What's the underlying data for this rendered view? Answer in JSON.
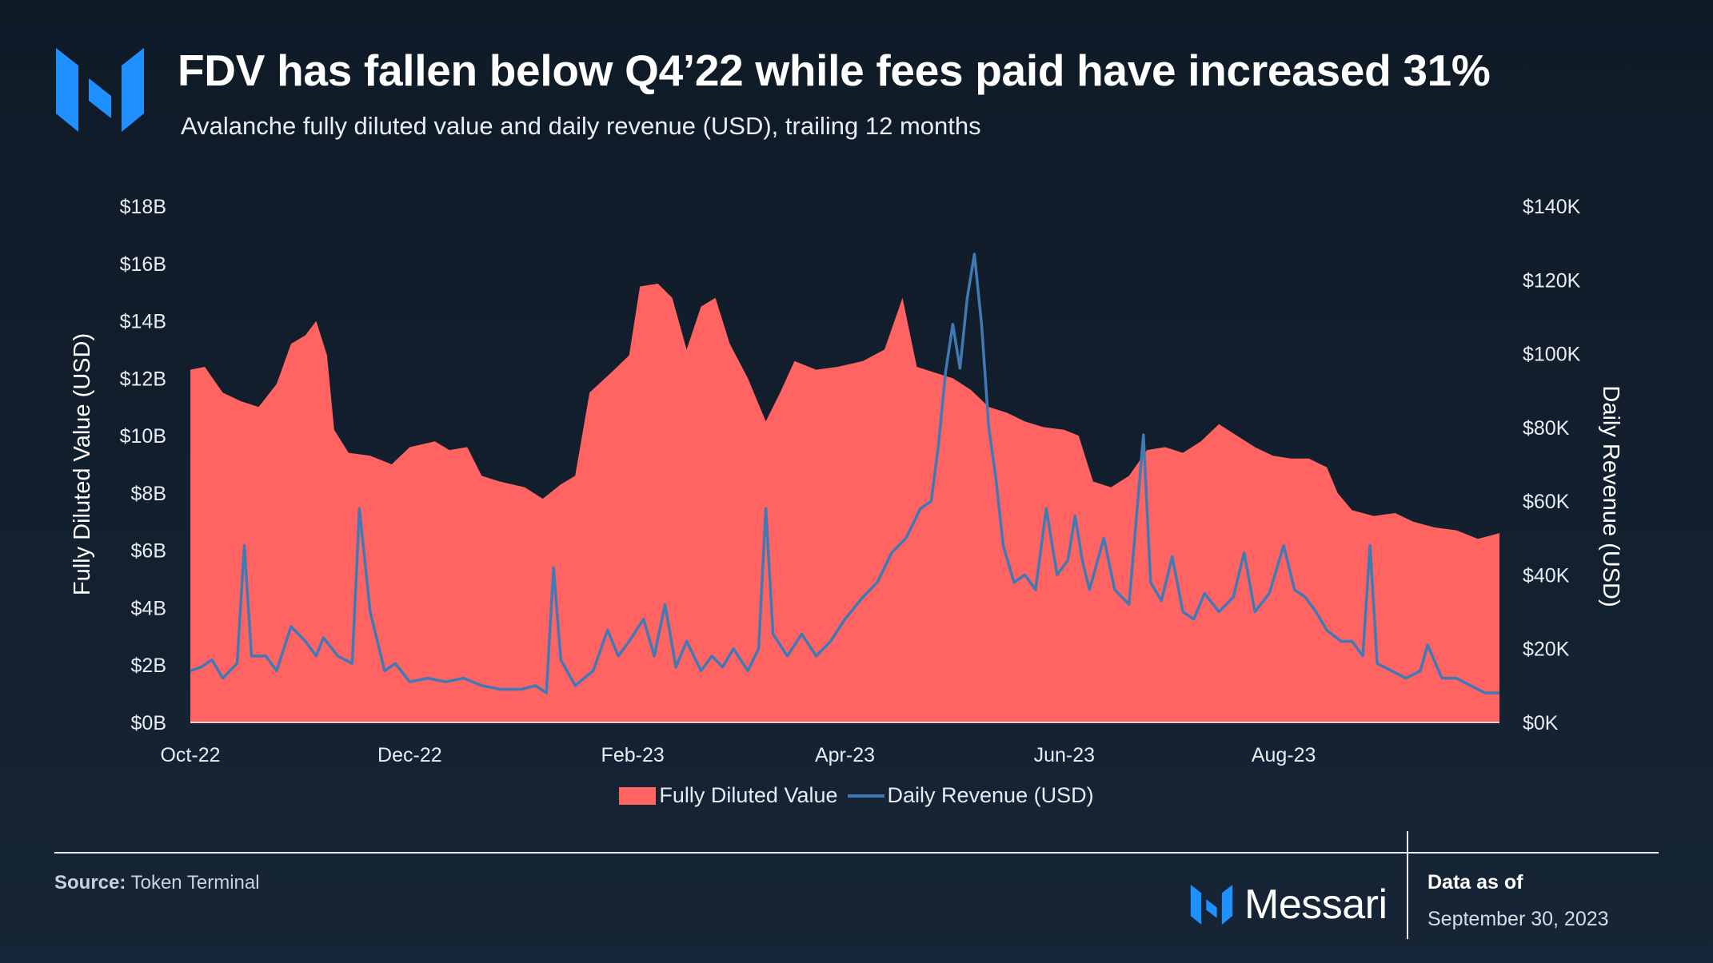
{
  "header": {
    "title": "FDV has fallen below Q4’22 while fees paid have increased 31%",
    "subtitle": "Avalanche fully diluted value and daily revenue (USD), trailing 12 months"
  },
  "footer": {
    "source_label": "Source:",
    "source_value": "Token Terminal",
    "brand": "Messari",
    "data_as_of_label": "Data as of",
    "data_as_of_date": "September 30, 2023"
  },
  "colors": {
    "fdv_area": "#ff6362",
    "revenue_line": "#3f7ab6",
    "brand_blue": "#1e90ff"
  },
  "icons": [
    "messari-logo-icon"
  ],
  "chart_data": {
    "type": "area",
    "x_tick_labels": [
      "Oct-22",
      "Dec-22",
      "Feb-23",
      "Apr-23",
      "Jun-23",
      "Aug-23"
    ],
    "x_tick_dates": [
      "2022-10-01",
      "2022-12-01",
      "2023-02-01",
      "2023-04-01",
      "2023-06-01",
      "2023-08-01"
    ],
    "x_range": [
      "2022-10-01",
      "2023-09-30"
    ],
    "left_axis": {
      "label": "Fully Diluted Value (USD)",
      "ylim": [
        0,
        18
      ],
      "ticks": [
        "$0B",
        "$2B",
        "$4B",
        "$6B",
        "$8B",
        "$10B",
        "$12B",
        "$14B",
        "$16B",
        "$18B"
      ]
    },
    "right_axis": {
      "label": "Daily Revenue (USD)",
      "ylim": [
        0,
        140
      ],
      "ticks": [
        "$0K",
        "$20K",
        "$40K",
        "$60K",
        "$80K",
        "$100K",
        "$120K",
        "$140K"
      ]
    },
    "legend": [
      "Fully Diluted Value",
      "Daily Revenue (USD)"
    ],
    "grid": false,
    "series": [
      {
        "name": "Fully Diluted Value",
        "axis": "left",
        "unit": "USD billions",
        "points": [
          [
            "2022-10-01",
            12.3
          ],
          [
            "2022-10-05",
            12.4
          ],
          [
            "2022-10-10",
            11.5
          ],
          [
            "2022-10-15",
            11.2
          ],
          [
            "2022-10-20",
            11.0
          ],
          [
            "2022-10-25",
            11.8
          ],
          [
            "2022-10-29",
            13.2
          ],
          [
            "2022-11-02",
            13.5
          ],
          [
            "2022-11-05",
            14.0
          ],
          [
            "2022-11-08",
            12.8
          ],
          [
            "2022-11-10",
            10.2
          ],
          [
            "2022-11-14",
            9.4
          ],
          [
            "2022-11-20",
            9.3
          ],
          [
            "2022-11-26",
            9.0
          ],
          [
            "2022-12-01",
            9.6
          ],
          [
            "2022-12-08",
            9.8
          ],
          [
            "2022-12-12",
            9.5
          ],
          [
            "2022-12-17",
            9.6
          ],
          [
            "2022-12-21",
            8.6
          ],
          [
            "2022-12-26",
            8.4
          ],
          [
            "2023-01-02",
            8.2
          ],
          [
            "2023-01-07",
            7.8
          ],
          [
            "2023-01-12",
            8.3
          ],
          [
            "2023-01-16",
            8.6
          ],
          [
            "2023-01-20",
            11.5
          ],
          [
            "2023-01-26",
            12.2
          ],
          [
            "2023-01-31",
            12.8
          ],
          [
            "2023-02-03",
            15.2
          ],
          [
            "2023-02-08",
            15.3
          ],
          [
            "2023-02-12",
            14.8
          ],
          [
            "2023-02-16",
            13.0
          ],
          [
            "2023-02-20",
            14.5
          ],
          [
            "2023-02-24",
            14.8
          ],
          [
            "2023-02-28",
            13.2
          ],
          [
            "2023-03-05",
            12.0
          ],
          [
            "2023-03-10",
            10.5
          ],
          [
            "2023-03-14",
            11.5
          ],
          [
            "2023-03-18",
            12.6
          ],
          [
            "2023-03-24",
            12.3
          ],
          [
            "2023-03-30",
            12.4
          ],
          [
            "2023-04-06",
            12.6
          ],
          [
            "2023-04-12",
            13.0
          ],
          [
            "2023-04-17",
            14.8
          ],
          [
            "2023-04-21",
            12.4
          ],
          [
            "2023-04-26",
            12.2
          ],
          [
            "2023-05-01",
            12.0
          ],
          [
            "2023-05-06",
            11.6
          ],
          [
            "2023-05-11",
            11.0
          ],
          [
            "2023-05-16",
            10.8
          ],
          [
            "2023-05-21",
            10.5
          ],
          [
            "2023-05-26",
            10.3
          ],
          [
            "2023-06-01",
            10.2
          ],
          [
            "2023-06-05",
            10.0
          ],
          [
            "2023-06-09",
            8.4
          ],
          [
            "2023-06-14",
            8.2
          ],
          [
            "2023-06-19",
            8.6
          ],
          [
            "2023-06-24",
            9.5
          ],
          [
            "2023-06-29",
            9.6
          ],
          [
            "2023-07-04",
            9.4
          ],
          [
            "2023-07-09",
            9.8
          ],
          [
            "2023-07-14",
            10.4
          ],
          [
            "2023-07-19",
            10.0
          ],
          [
            "2023-07-24",
            9.6
          ],
          [
            "2023-07-29",
            9.3
          ],
          [
            "2023-08-03",
            9.2
          ],
          [
            "2023-08-08",
            9.2
          ],
          [
            "2023-08-13",
            8.9
          ],
          [
            "2023-08-16",
            8.0
          ],
          [
            "2023-08-20",
            7.4
          ],
          [
            "2023-08-26",
            7.2
          ],
          [
            "2023-09-01",
            7.3
          ],
          [
            "2023-09-06",
            7.0
          ],
          [
            "2023-09-12",
            6.8
          ],
          [
            "2023-09-18",
            6.7
          ],
          [
            "2023-09-24",
            6.4
          ],
          [
            "2023-09-30",
            6.6
          ]
        ]
      },
      {
        "name": "Daily Revenue (USD)",
        "axis": "right",
        "unit": "USD thousands",
        "points": [
          [
            "2022-10-01",
            14
          ],
          [
            "2022-10-04",
            15
          ],
          [
            "2022-10-07",
            17
          ],
          [
            "2022-10-10",
            12
          ],
          [
            "2022-10-14",
            16
          ],
          [
            "2022-10-16",
            48
          ],
          [
            "2022-10-18",
            18
          ],
          [
            "2022-10-22",
            18
          ],
          [
            "2022-10-25",
            14
          ],
          [
            "2022-10-29",
            26
          ],
          [
            "2022-11-02",
            22
          ],
          [
            "2022-11-05",
            18
          ],
          [
            "2022-11-07",
            23
          ],
          [
            "2022-11-11",
            18
          ],
          [
            "2022-11-15",
            16
          ],
          [
            "2022-11-17",
            58
          ],
          [
            "2022-11-20",
            30
          ],
          [
            "2022-11-24",
            14
          ],
          [
            "2022-11-27",
            16
          ],
          [
            "2022-12-01",
            11
          ],
          [
            "2022-12-06",
            12
          ],
          [
            "2022-12-11",
            11
          ],
          [
            "2022-12-16",
            12
          ],
          [
            "2022-12-21",
            10
          ],
          [
            "2022-12-26",
            9
          ],
          [
            "2023-01-01",
            9
          ],
          [
            "2023-01-05",
            10
          ],
          [
            "2023-01-08",
            8
          ],
          [
            "2023-01-10",
            42
          ],
          [
            "2023-01-12",
            17
          ],
          [
            "2023-01-16",
            10
          ],
          [
            "2023-01-21",
            14
          ],
          [
            "2023-01-25",
            25
          ],
          [
            "2023-01-28",
            18
          ],
          [
            "2023-01-31",
            22
          ],
          [
            "2023-02-04",
            28
          ],
          [
            "2023-02-07",
            18
          ],
          [
            "2023-02-10",
            32
          ],
          [
            "2023-02-13",
            15
          ],
          [
            "2023-02-16",
            22
          ],
          [
            "2023-02-20",
            14
          ],
          [
            "2023-02-23",
            18
          ],
          [
            "2023-02-26",
            15
          ],
          [
            "2023-03-01",
            20
          ],
          [
            "2023-03-05",
            14
          ],
          [
            "2023-03-08",
            20
          ],
          [
            "2023-03-10",
            58
          ],
          [
            "2023-03-12",
            24
          ],
          [
            "2023-03-16",
            18
          ],
          [
            "2023-03-20",
            24
          ],
          [
            "2023-03-24",
            18
          ],
          [
            "2023-03-28",
            22
          ],
          [
            "2023-04-01",
            28
          ],
          [
            "2023-04-06",
            34
          ],
          [
            "2023-04-10",
            38
          ],
          [
            "2023-04-14",
            46
          ],
          [
            "2023-04-18",
            50
          ],
          [
            "2023-04-22",
            58
          ],
          [
            "2023-04-25",
            60
          ],
          [
            "2023-04-27",
            75
          ],
          [
            "2023-04-29",
            95
          ],
          [
            "2023-05-01",
            108
          ],
          [
            "2023-05-03",
            96
          ],
          [
            "2023-05-05",
            115
          ],
          [
            "2023-05-07",
            127
          ],
          [
            "2023-05-09",
            108
          ],
          [
            "2023-05-11",
            80
          ],
          [
            "2023-05-13",
            66
          ],
          [
            "2023-05-15",
            48
          ],
          [
            "2023-05-18",
            38
          ],
          [
            "2023-05-21",
            40
          ],
          [
            "2023-05-24",
            36
          ],
          [
            "2023-05-27",
            58
          ],
          [
            "2023-05-30",
            40
          ],
          [
            "2023-06-02",
            44
          ],
          [
            "2023-06-04",
            56
          ],
          [
            "2023-06-06",
            44
          ],
          [
            "2023-06-08",
            36
          ],
          [
            "2023-06-12",
            50
          ],
          [
            "2023-06-15",
            36
          ],
          [
            "2023-06-19",
            32
          ],
          [
            "2023-06-23",
            78
          ],
          [
            "2023-06-25",
            38
          ],
          [
            "2023-06-28",
            33
          ],
          [
            "2023-07-01",
            45
          ],
          [
            "2023-07-04",
            30
          ],
          [
            "2023-07-07",
            28
          ],
          [
            "2023-07-10",
            35
          ],
          [
            "2023-07-14",
            30
          ],
          [
            "2023-07-18",
            34
          ],
          [
            "2023-07-21",
            46
          ],
          [
            "2023-07-24",
            30
          ],
          [
            "2023-07-28",
            35
          ],
          [
            "2023-08-01",
            48
          ],
          [
            "2023-08-04",
            36
          ],
          [
            "2023-08-07",
            34
          ],
          [
            "2023-08-10",
            30
          ],
          [
            "2023-08-13",
            25
          ],
          [
            "2023-08-17",
            22
          ],
          [
            "2023-08-20",
            22
          ],
          [
            "2023-08-23",
            18
          ],
          [
            "2023-08-25",
            48
          ],
          [
            "2023-08-27",
            16
          ],
          [
            "2023-08-31",
            14
          ],
          [
            "2023-09-04",
            12
          ],
          [
            "2023-09-08",
            14
          ],
          [
            "2023-09-10",
            21
          ],
          [
            "2023-09-14",
            12
          ],
          [
            "2023-09-18",
            12
          ],
          [
            "2023-09-22",
            10
          ],
          [
            "2023-09-26",
            8
          ],
          [
            "2023-09-30",
            8
          ]
        ]
      }
    ]
  }
}
